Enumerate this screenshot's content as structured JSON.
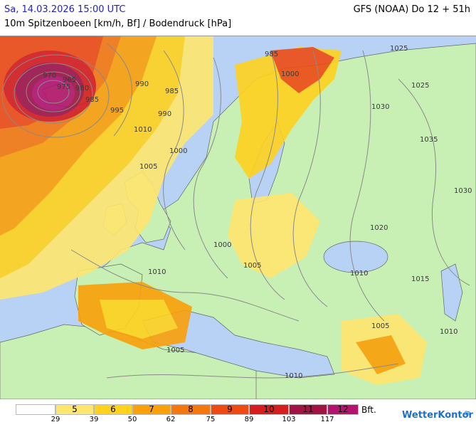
{
  "header": {
    "date": "Sa, 14.03.2026 15:00 UTC",
    "model": "GFS (NOAA) Do 12 + 51h",
    "parameter": "10m Spitzenboeen [km/h, Bf] / Bodendruck [hPa]"
  },
  "map": {
    "isobar_labels": [
      "970",
      "965",
      "975",
      "980",
      "985",
      "985",
      "990",
      "990",
      "985",
      "995",
      "1000",
      "1005",
      "1000",
      "1025",
      "1025",
      "1030",
      "1035",
      "1030",
      "1020",
      "1010",
      "1015",
      "1010",
      "1010",
      "1005",
      "1005",
      "1010",
      "1005",
      "1000",
      "1010"
    ]
  },
  "legend": {
    "cells": [
      {
        "bft": "",
        "color": "#ffffff"
      },
      {
        "bft": "5",
        "color": "#ffe66e"
      },
      {
        "bft": "6",
        "color": "#ffd21e"
      },
      {
        "bft": "7",
        "color": "#faa00a"
      },
      {
        "bft": "8",
        "color": "#f5780f"
      },
      {
        "bft": "9",
        "color": "#ee4b14"
      },
      {
        "bft": "10",
        "color": "#d71e1e"
      },
      {
        "bft": "11",
        "color": "#a01446"
      },
      {
        "bft": "12",
        "color": "#b4146e"
      }
    ],
    "values": [
      "29",
      "39",
      "50",
      "62",
      "75",
      "89",
      "103",
      "117"
    ],
    "unit": "Bft."
  },
  "brand": {
    "logo_text": "WetterKontor"
  }
}
